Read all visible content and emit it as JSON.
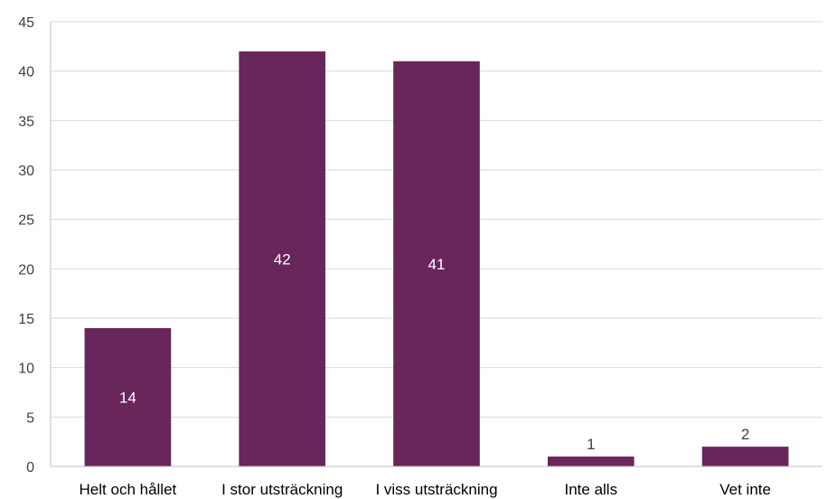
{
  "chart_data": {
    "type": "bar",
    "title": "",
    "xlabel": "",
    "ylabel": "",
    "categories": [
      "Helt och hållet",
      "I stor utsträckning",
      "I viss utsträckning",
      "Inte alls",
      "Vet inte"
    ],
    "values": [
      14,
      42,
      41,
      1,
      2
    ],
    "data_labels": [
      "14",
      "42",
      "41",
      "1",
      "2"
    ],
    "ylim": [
      0,
      45
    ],
    "yticks": [
      0,
      5,
      10,
      15,
      20,
      25,
      30,
      35,
      40,
      45
    ],
    "grid": "horizontal",
    "legend": "none",
    "colors": {
      "bar": "#68265a",
      "grid": "#d9d9d9",
      "axis": "#bfbfbf",
      "label_inside": "#ffffff",
      "label_outside": "#404040"
    }
  }
}
